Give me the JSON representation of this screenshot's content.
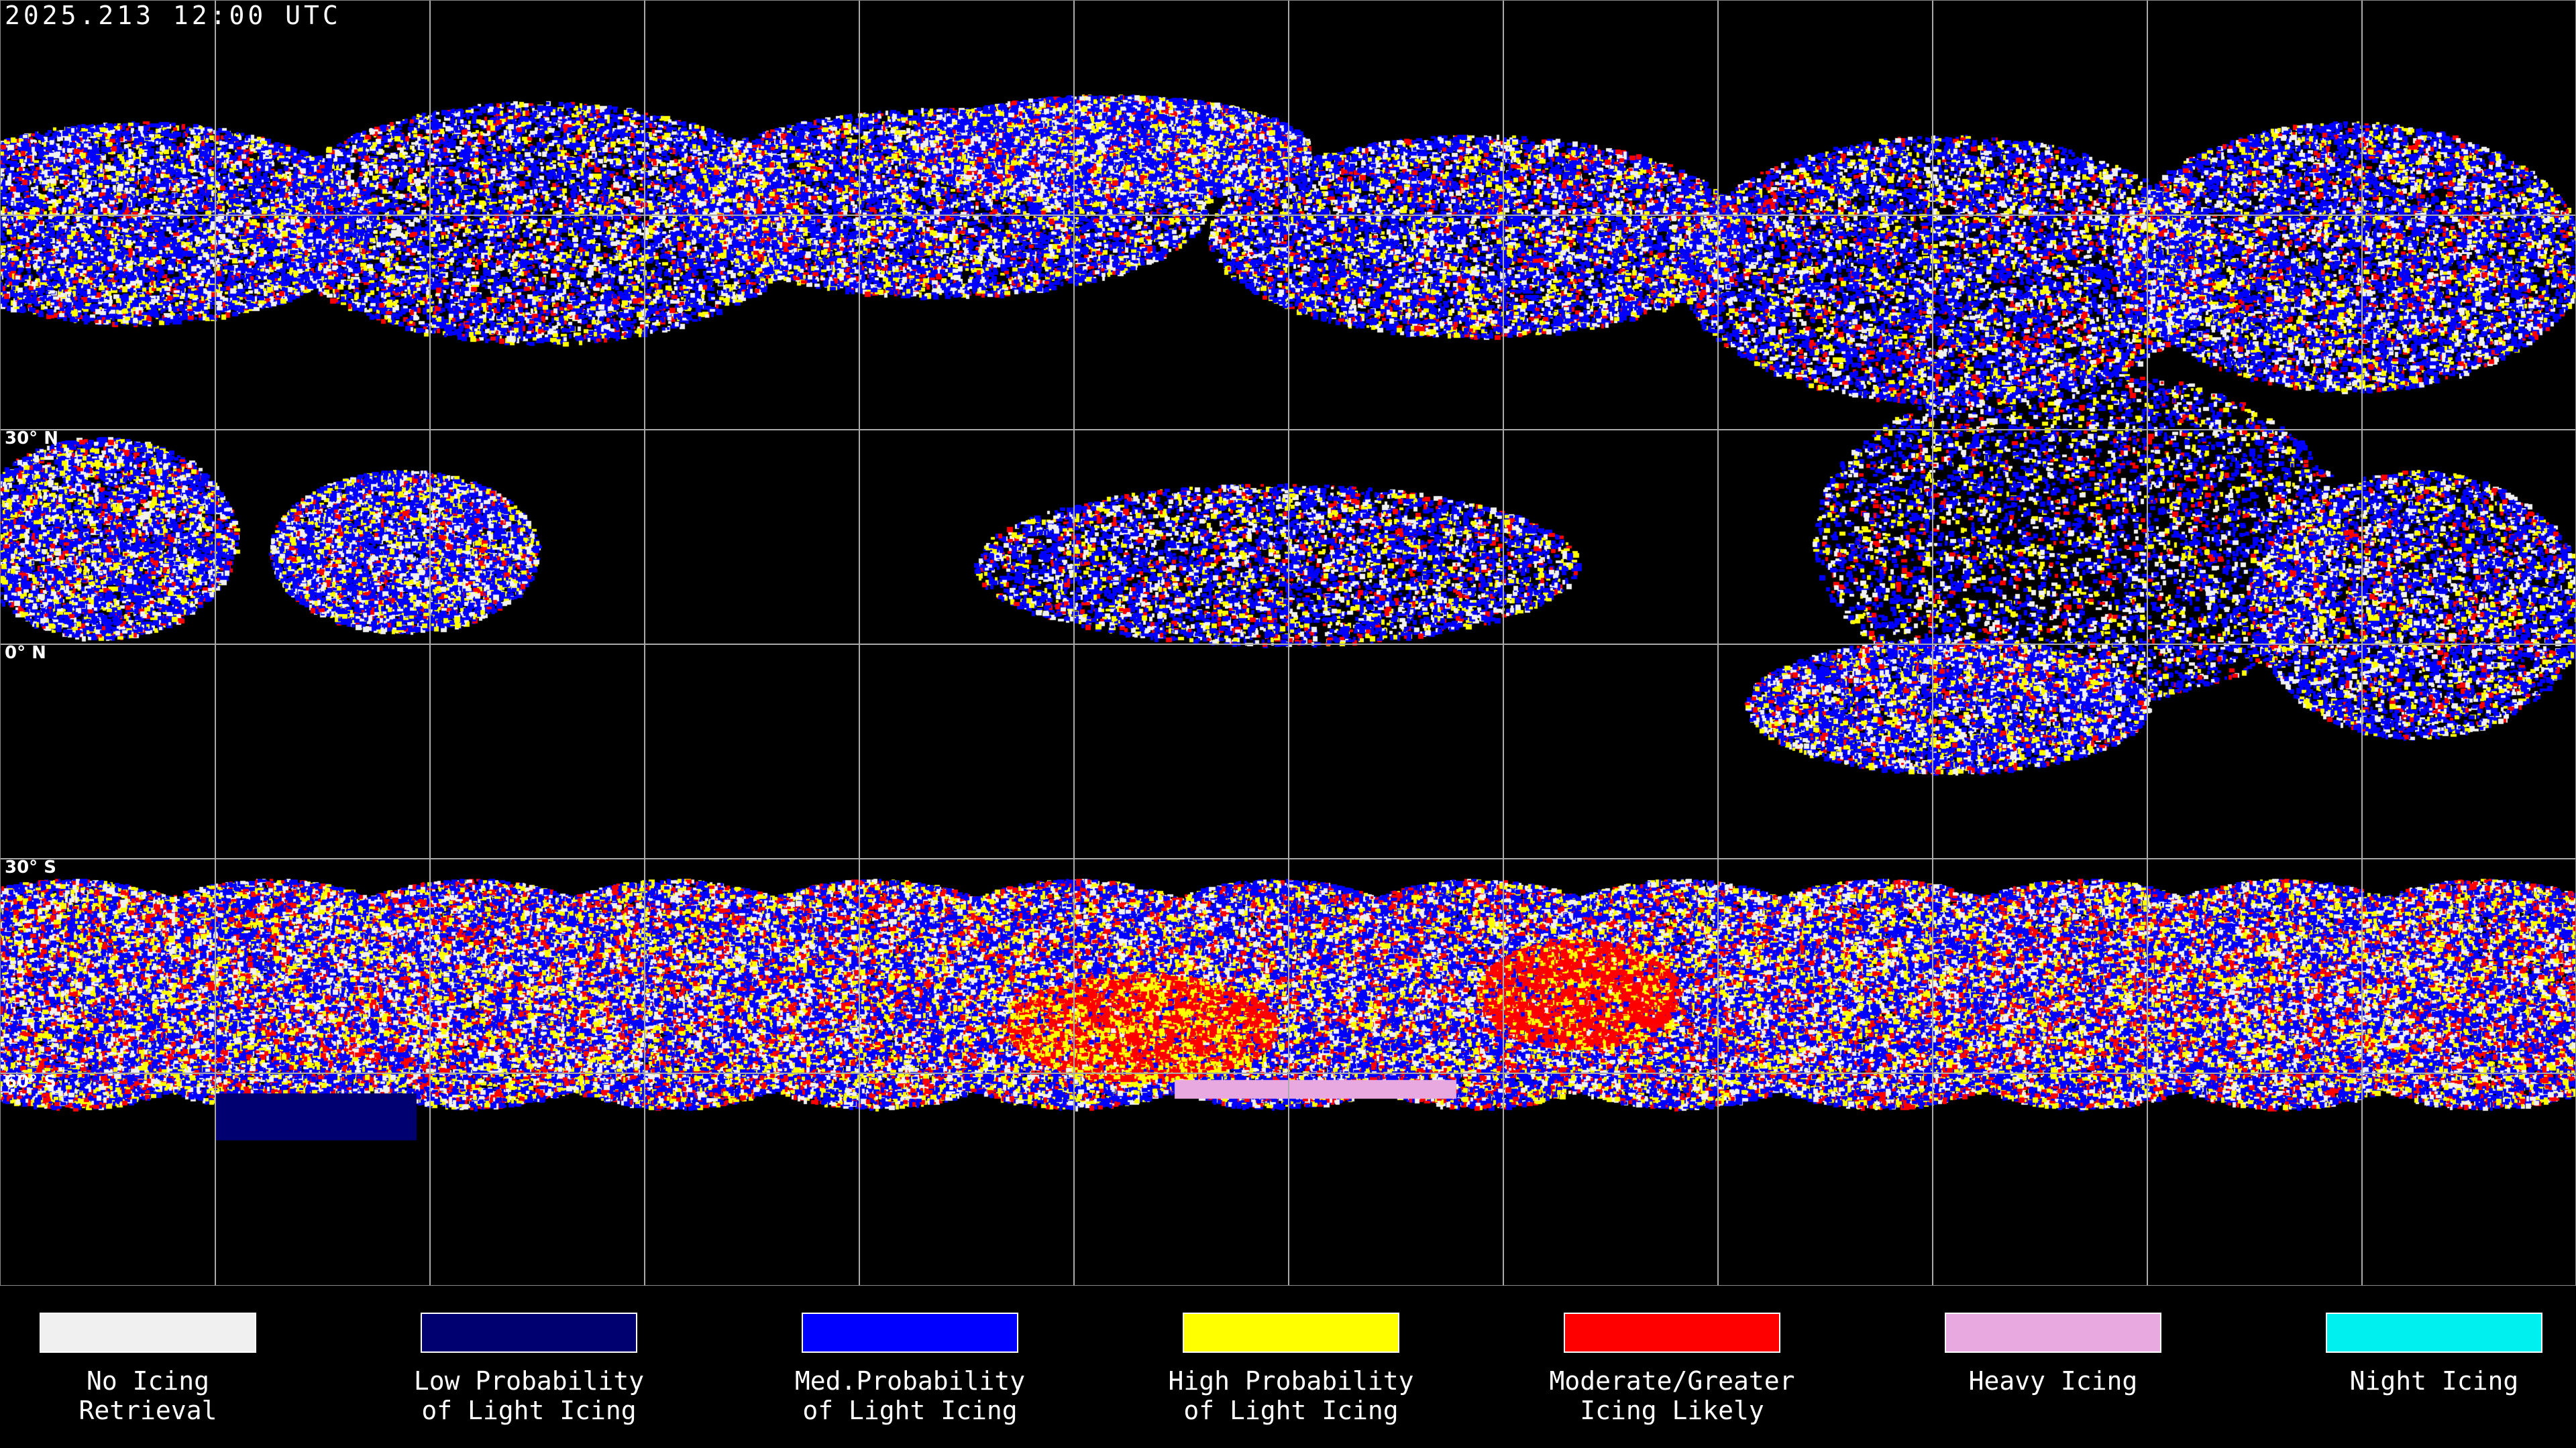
{
  "title": "2025.213 12:00 UTC",
  "latitude_labels": [
    "30° N",
    "0° N",
    "30° S",
    "60° S"
  ],
  "legend": [
    {
      "line1": "No Icing",
      "line2": "Retrieval",
      "color": "#f0f0f0"
    },
    {
      "line1": "Low Probability",
      "line2": "of Light Icing",
      "color": "#000070"
    },
    {
      "line1": "Med.Probability",
      "line2": "of Light Icing",
      "color": "#0000ff"
    },
    {
      "line1": "High Probability",
      "line2": "of Light Icing",
      "color": "#ffff00"
    },
    {
      "line1": "Moderate/Greater",
      "line2": "Icing Likely",
      "color": "#ff0000"
    },
    {
      "line1": "Heavy Icing",
      "line2": "",
      "color": "#e8a8e0"
    },
    {
      "line1": "Night Icing",
      "line2": "",
      "color": "#00f0f0"
    }
  ]
}
